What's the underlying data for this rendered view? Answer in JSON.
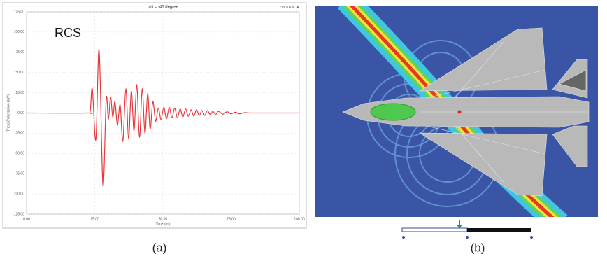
{
  "chart_data": {
    "type": "line",
    "title": "phi = -45 degree",
    "annotation": "RCS",
    "x_label": "Time (ns)",
    "y_label": "Theta Polarization (mV)",
    "legend": "top-right",
    "grid": true,
    "xlim": [
      0,
      100
    ],
    "ylim": [
      -125,
      125
    ],
    "xticks": [
      {
        "value": 0,
        "label": "0.00"
      },
      {
        "value": 25,
        "label": "25.00"
      },
      {
        "value": 50,
        "label": "50.00"
      },
      {
        "value": 75,
        "label": "75.00"
      },
      {
        "value": 100,
        "label": "100.00"
      }
    ],
    "yticks": [
      {
        "value": 125,
        "label": "125.00"
      },
      {
        "value": 100,
        "label": "100.00"
      },
      {
        "value": 75,
        "label": "75.00"
      },
      {
        "value": 50,
        "label": "50.00"
      },
      {
        "value": 25,
        "label": "25.00"
      },
      {
        "value": 0,
        "label": "0.00"
      },
      {
        "value": -25,
        "label": "-25.00"
      },
      {
        "value": -50,
        "label": "-50.00"
      },
      {
        "value": -75,
        "label": "-75.00"
      },
      {
        "value": -100,
        "label": "-100.00"
      },
      {
        "value": -125,
        "label": "-125.00"
      }
    ],
    "x": [
      0,
      22,
      23.3,
      24.1,
      25.4,
      26.6,
      28.0,
      29.2,
      30.0,
      30.8,
      31.6,
      32.4,
      33.3,
      34.3,
      35.3,
      36.4,
      37.4,
      38.4,
      39.4,
      40.4,
      41.4,
      42.4,
      43.4,
      44.4,
      45.3,
      46.3,
      47.3,
      48.3,
      49.3,
      50.3,
      51.3,
      52.3,
      53.3,
      54.3,
      55.3,
      56.3,
      57.3,
      58.3,
      59.3,
      60.3,
      61.3,
      62.3,
      63.3,
      64.3,
      65.3,
      66.3,
      67.3,
      68.3,
      69.3,
      70.3,
      72,
      73.5,
      75,
      76.5,
      78,
      80,
      83,
      100
    ],
    "series": [
      {
        "name": "FIR Trans",
        "color": "#e8383d",
        "values": [
          0,
          0,
          2,
          30,
          -33,
          78,
          -90,
          18,
          -8,
          20,
          -5,
          14,
          -15,
          10,
          -35,
          30,
          -32,
          27,
          -22,
          35,
          -30,
          30,
          -25,
          24,
          -20,
          14,
          -10,
          6,
          -8,
          7,
          -7,
          7,
          -6,
          6,
          -6,
          5,
          -5,
          5,
          -4,
          4,
          -4,
          4,
          -3,
          3,
          -3,
          3,
          -2,
          2,
          -2,
          2,
          -1.5,
          1.5,
          -1,
          1,
          -1,
          0.5,
          0,
          0
        ]
      }
    ]
  },
  "figure_labels": [
    "(a)",
    "(b)"
  ]
}
